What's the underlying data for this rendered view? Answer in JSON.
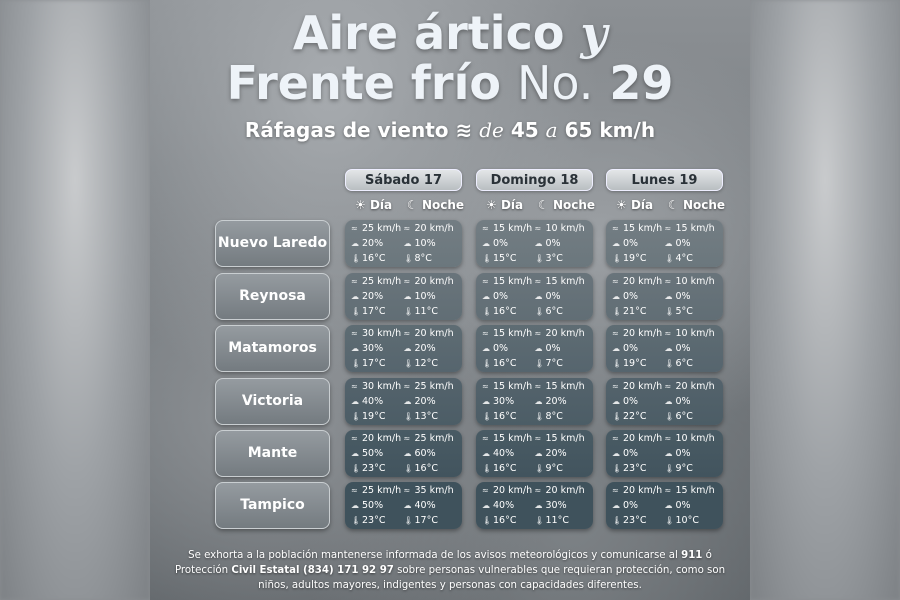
{
  "title": {
    "line1": "Aire ártico",
    "line1_y": "y",
    "line2": "Frente frío",
    "line2_no": "No.",
    "line2_num": "29"
  },
  "subtitle": {
    "text": "Ráfagas de viento",
    "icon": "wind-icon",
    "de": "de",
    "from": "45",
    "a": "a",
    "to": "65 km/h"
  },
  "days": [
    "Sábado 17",
    "Domingo 18",
    "Lunes 19"
  ],
  "labels": {
    "day": "Día",
    "night": "Noche",
    "day_icon": "sun-icon",
    "night_icon": "moon-icon"
  },
  "cities": [
    {
      "name": "Nuevo Laredo",
      "days": [
        [
          [
            "25 km/h",
            "20%",
            "16°C"
          ],
          [
            "20 km/h",
            "10%",
            "8°C"
          ]
        ],
        [
          [
            "15 km/h",
            "0%",
            "15°C"
          ],
          [
            "10 km/h",
            "0%",
            "3°C"
          ]
        ],
        [
          [
            "15 km/h",
            "0%",
            "19°C"
          ],
          [
            "15 km/h",
            "0%",
            "4°C"
          ]
        ]
      ]
    },
    {
      "name": "Reynosa",
      "days": [
        [
          [
            "25 km/h",
            "20%",
            "17°C"
          ],
          [
            "20 km/h",
            "10%",
            "11°C"
          ]
        ],
        [
          [
            "15 km/h",
            "0%",
            "16°C"
          ],
          [
            "15 km/h",
            "0%",
            "6°C"
          ]
        ],
        [
          [
            "20 km/h",
            "0%",
            "21°C"
          ],
          [
            "10 km/h",
            "0%",
            "5°C"
          ]
        ]
      ]
    },
    {
      "name": "Matamoros",
      "days": [
        [
          [
            "30 km/h",
            "30%",
            "17°C"
          ],
          [
            "20 km/h",
            "20%",
            "12°C"
          ]
        ],
        [
          [
            "15 km/h",
            "0%",
            "16°C"
          ],
          [
            "20 km/h",
            "0%",
            "7°C"
          ]
        ],
        [
          [
            "20 km/h",
            "0%",
            "19°C"
          ],
          [
            "10 km/h",
            "0%",
            "6°C"
          ]
        ]
      ]
    },
    {
      "name": "Victoria",
      "days": [
        [
          [
            "30 km/h",
            "40%",
            "19°C"
          ],
          [
            "25 km/h",
            "20%",
            "13°C"
          ]
        ],
        [
          [
            "15 km/h",
            "30%",
            "16°C"
          ],
          [
            "15 km/h",
            "20%",
            "8°C"
          ]
        ],
        [
          [
            "20 km/h",
            "0%",
            "22°C"
          ],
          [
            "20 km/h",
            "0%",
            "6°C"
          ]
        ]
      ]
    },
    {
      "name": "Mante",
      "days": [
        [
          [
            "20 km/h",
            "50%",
            "23°C"
          ],
          [
            "25 km/h",
            "60%",
            "16°C"
          ]
        ],
        [
          [
            "15 km/h",
            "40%",
            "16°C"
          ],
          [
            "15 km/h",
            "20%",
            "9°C"
          ]
        ],
        [
          [
            "20 km/h",
            "0%",
            "23°C"
          ],
          [
            "10 km/h",
            "0%",
            "9°C"
          ]
        ]
      ]
    },
    {
      "name": "Tampico",
      "days": [
        [
          [
            "25 km/h",
            "50%",
            "23°C"
          ],
          [
            "35 km/h",
            "40%",
            "17°C"
          ]
        ],
        [
          [
            "20 km/h",
            "40%",
            "16°C"
          ],
          [
            "20 km/h",
            "30%",
            "11°C"
          ]
        ],
        [
          [
            "20 km/h",
            "0%",
            "23°C"
          ],
          [
            "15 km/h",
            "0%",
            "10°C"
          ]
        ]
      ]
    }
  ],
  "footer": {
    "p1": "Se exhorta a la población mantenerse informada de los avisos meteorológicos y comunicarse al ",
    "n911": "911",
    "p2": " ó Protección ",
    "org": "Civil Estatal (834) 171 92 97",
    "p3": " sobre personas vulnerables que requieran protección, como son niños, adultos mayores, indigentes y personas con capacidades diferentes."
  },
  "colors": {
    "card_top": "#737d83",
    "card_bottom": "#3f525c"
  }
}
